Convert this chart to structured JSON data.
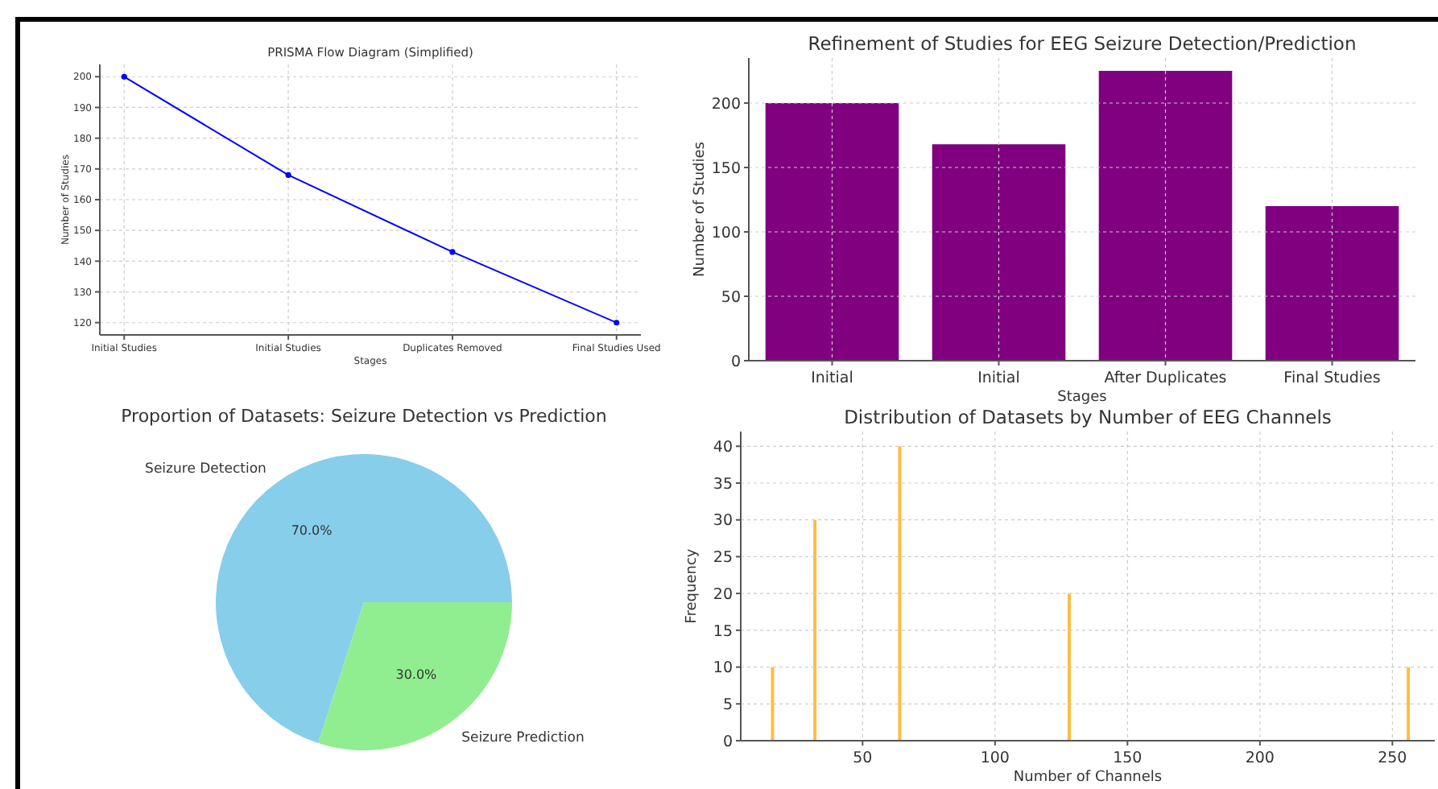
{
  "chart_data": [
    {
      "type": "line",
      "title": "PRISMA Flow Diagram (Simplified)",
      "xlabel": "Stages",
      "ylabel": "Number of Studies",
      "categories": [
        "Initial Studies",
        "Initial Studies",
        "Duplicates Removed",
        "Final Studies Used"
      ],
      "values": [
        200,
        168,
        143,
        120
      ],
      "color": "#0000ff",
      "ylim": [
        116,
        204
      ],
      "yticks": [
        120,
        130,
        140,
        150,
        160,
        170,
        180,
        190,
        200
      ],
      "grid": true,
      "marker": "circle",
      "line_style": "solid"
    },
    {
      "type": "bar",
      "title": "Refinement of Studies for EEG Seizure Detection/Prediction",
      "xlabel": "Stages",
      "ylabel": "Number of Studies",
      "categories": [
        "Initial",
        "Initial",
        "After Duplicates",
        "Final Studies"
      ],
      "values": [
        200,
        168,
        225,
        120
      ],
      "color": "#800080",
      "ylim": [
        0,
        235
      ],
      "yticks": [
        0,
        50,
        100,
        150,
        200
      ],
      "grid": true
    },
    {
      "type": "pie",
      "title": "Proportion of Datasets: Seizure Detection vs Prediction",
      "categories": [
        "Seizure Detection",
        "Seizure Prediction"
      ],
      "values": [
        70,
        30
      ],
      "colors": [
        "#87ceeb",
        "#90ee90"
      ],
      "value_labels": [
        "70.0%",
        "30.0%"
      ]
    },
    {
      "type": "bar",
      "title": "Distribution of Datasets by Number of EEG Channels",
      "xlabel": "Number of Channels",
      "ylabel": "Frequency",
      "x": [
        16,
        32,
        64,
        128,
        256
      ],
      "values": [
        10,
        30,
        40,
        20,
        10
      ],
      "color": "#ffa500",
      "xlim": [
        4,
        266
      ],
      "xticks": [
        50,
        100,
        150,
        200,
        250
      ],
      "ylim": [
        0,
        42
      ],
      "yticks": [
        0,
        5,
        10,
        15,
        20,
        25,
        30,
        35,
        40
      ],
      "grid": true
    }
  ]
}
